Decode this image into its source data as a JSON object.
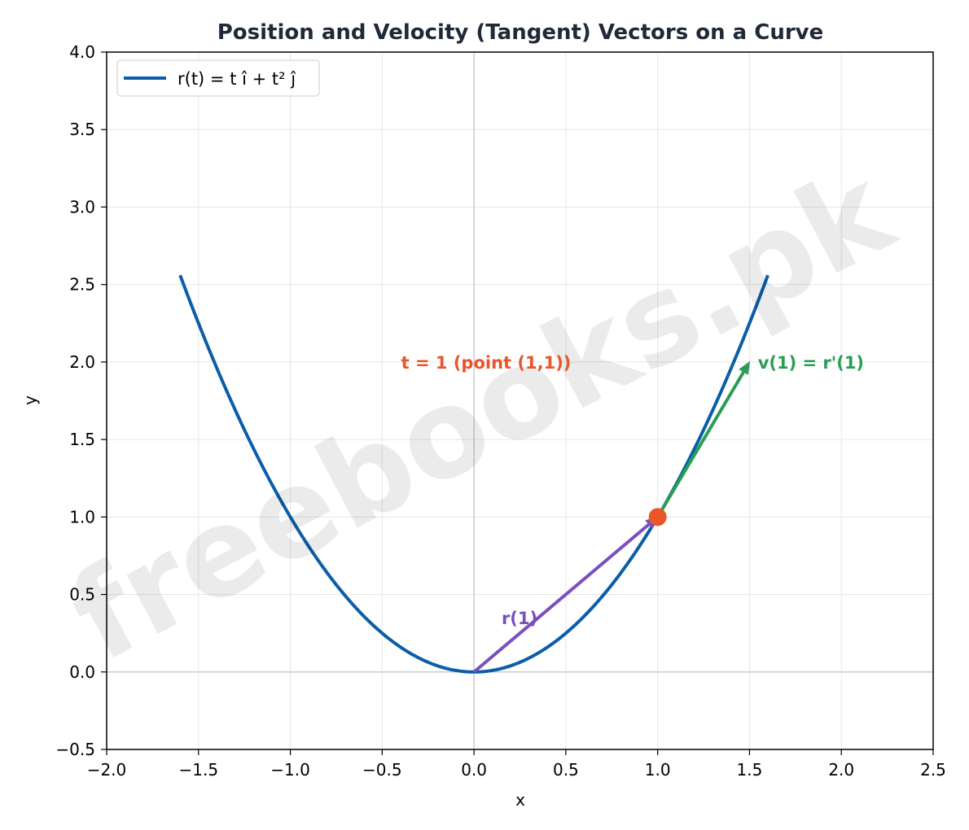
{
  "chart_data": {
    "type": "line",
    "title": "Position and Velocity (Tangent) Vectors on a Curve",
    "xlabel": "x",
    "ylabel": "y",
    "xlim": [
      -2.0,
      2.5
    ],
    "ylim": [
      -0.5,
      4.0
    ],
    "x_ticks": [
      -2.0,
      -1.5,
      -1.0,
      -0.5,
      0.0,
      0.5,
      1.0,
      1.5,
      2.0,
      2.5
    ],
    "y_ticks": [
      -0.5,
      0.0,
      0.5,
      1.0,
      1.5,
      2.0,
      2.5,
      3.0,
      3.5,
      4.0
    ],
    "grid": true,
    "legend_position": "top-left",
    "series": [
      {
        "name": "r(t) = t î + t² ĵ",
        "t_range": [
          -1.6,
          1.6
        ],
        "x_expression": "t",
        "y_expression": "t^2",
        "color": "#0a5ea8"
      }
    ],
    "point": {
      "x": 1.0,
      "y": 1.0,
      "label": "t = 1  (point (1,1))",
      "color": "#e8562a"
    },
    "vectors": [
      {
        "label": "r(1)",
        "from": [
          0.0,
          0.0
        ],
        "to": [
          1.0,
          1.0
        ],
        "color": "#7a4fbe"
      },
      {
        "label": "v(1) = r'(1)",
        "from": [
          1.0,
          1.0
        ],
        "to": [
          1.5,
          2.0
        ],
        "color": "#2a9d55"
      }
    ],
    "reference_lines": {
      "x0": true,
      "y0": true
    }
  },
  "watermark": "freebooks.pk",
  "colors": {
    "title": "#1f2937",
    "grid": "#e6e6e6",
    "zero_line": "#cccccc"
  }
}
